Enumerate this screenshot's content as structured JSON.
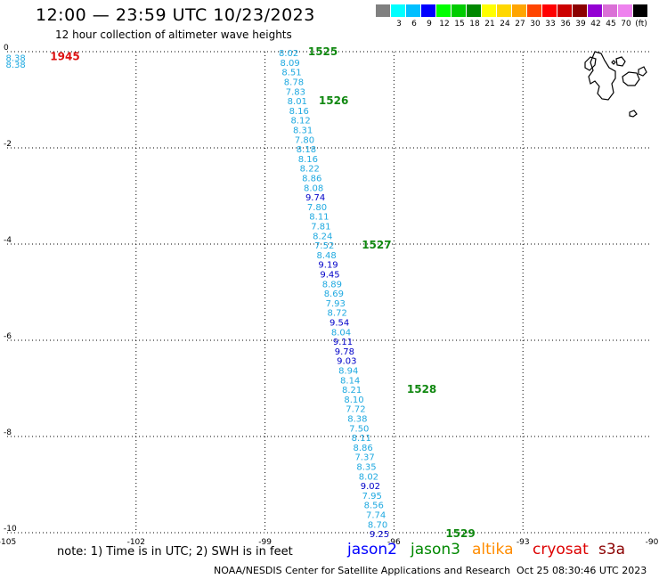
{
  "header": {
    "title": "12:00 — 23:59 UTC 10/23/2023",
    "subtitle": "12 hour collection of altimeter wave heights"
  },
  "colorbar": {
    "unit_label": "(ft)",
    "swatches": [
      {
        "color": "#808080",
        "label": ""
      },
      {
        "color": "#00ffff",
        "label": "3"
      },
      {
        "color": "#00bfff",
        "label": "6"
      },
      {
        "color": "#0000ff",
        "label": "9"
      },
      {
        "color": "#00ff00",
        "label": "12"
      },
      {
        "color": "#00cc00",
        "label": "15"
      },
      {
        "color": "#008800",
        "label": "18"
      },
      {
        "color": "#ffff00",
        "label": "21"
      },
      {
        "color": "#ffd700",
        "label": "24"
      },
      {
        "color": "#ffa500",
        "label": "27"
      },
      {
        "color": "#ff4500",
        "label": "30"
      },
      {
        "color": "#ff0000",
        "label": "33"
      },
      {
        "color": "#cc0000",
        "label": "36"
      },
      {
        "color": "#8b0000",
        "label": "39"
      },
      {
        "color": "#9400d3",
        "label": "42"
      },
      {
        "color": "#da70d6",
        "label": "45"
      },
      {
        "color": "#ee82ee",
        "label": "70"
      },
      {
        "color": "#000000",
        "label": ""
      }
    ]
  },
  "map": {
    "lon_range": [
      -105,
      -90
    ],
    "lat_range": [
      -10,
      0
    ],
    "x_ticks": [
      {
        "value": -105,
        "label": "-105"
      },
      {
        "value": -102,
        "label": "-102"
      },
      {
        "value": -99,
        "label": "-99"
      },
      {
        "value": -96,
        "label": "-96"
      },
      {
        "value": -93,
        "label": "-93"
      },
      {
        "value": -90,
        "label": "-90"
      }
    ],
    "y_ticks": [
      {
        "value": 0,
        "label": "0"
      },
      {
        "value": -2,
        "label": "-2"
      },
      {
        "value": -4,
        "label": "-4"
      },
      {
        "value": -6,
        "label": "-6"
      },
      {
        "value": -8,
        "label": "-8"
      },
      {
        "value": -10,
        "label": "-10"
      }
    ],
    "gridlines": true
  },
  "colors": {
    "swh_light": "#1fa9e0",
    "swh_dark": "#0000c8",
    "time_jason3": "#118811",
    "time_cryosat": "#dd1111",
    "land": "#000000"
  },
  "track_points": [
    {
      "lon": -98.45,
      "lat": -0.02,
      "swh": "8.02",
      "shade": "light"
    },
    {
      "lon": -98.42,
      "lat": -0.22,
      "swh": "8.09",
      "shade": "light"
    },
    {
      "lon": -98.38,
      "lat": -0.42,
      "swh": "8.51",
      "shade": "light"
    },
    {
      "lon": -98.33,
      "lat": -0.62,
      "swh": "8.78",
      "shade": "light"
    },
    {
      "lon": -98.29,
      "lat": -0.82,
      "swh": "7.83",
      "shade": "light"
    },
    {
      "lon": -98.25,
      "lat": -1.02,
      "swh": "8.01",
      "shade": "light"
    },
    {
      "lon": -98.21,
      "lat": -1.22,
      "swh": "8.16",
      "shade": "light"
    },
    {
      "lon": -98.17,
      "lat": -1.42,
      "swh": "8.12",
      "shade": "light"
    },
    {
      "lon": -98.12,
      "lat": -1.62,
      "swh": "8.31",
      "shade": "light"
    },
    {
      "lon": -98.08,
      "lat": -1.82,
      "swh": "7.80",
      "shade": "light"
    },
    {
      "lon": -98.04,
      "lat": -2.02,
      "swh": "8.18",
      "shade": "light"
    },
    {
      "lon": -98.0,
      "lat": -2.22,
      "swh": "8.16",
      "shade": "light"
    },
    {
      "lon": -97.96,
      "lat": -2.42,
      "swh": "8.22",
      "shade": "light"
    },
    {
      "lon": -97.91,
      "lat": -2.62,
      "swh": "8.86",
      "shade": "light"
    },
    {
      "lon": -97.87,
      "lat": -2.82,
      "swh": "8.08",
      "shade": "light"
    },
    {
      "lon": -97.83,
      "lat": -3.02,
      "swh": "9.74",
      "shade": "dark"
    },
    {
      "lon": -97.79,
      "lat": -3.22,
      "swh": "7.80",
      "shade": "light"
    },
    {
      "lon": -97.74,
      "lat": -3.42,
      "swh": "8.11",
      "shade": "light"
    },
    {
      "lon": -97.7,
      "lat": -3.62,
      "swh": "7.81",
      "shade": "light"
    },
    {
      "lon": -97.66,
      "lat": -3.82,
      "swh": "8.24",
      "shade": "light"
    },
    {
      "lon": -97.62,
      "lat": -4.02,
      "swh": "7.52",
      "shade": "light"
    },
    {
      "lon": -97.57,
      "lat": -4.22,
      "swh": "8.48",
      "shade": "light"
    },
    {
      "lon": -97.53,
      "lat": -4.42,
      "swh": "9.19",
      "shade": "dark"
    },
    {
      "lon": -97.49,
      "lat": -4.62,
      "swh": "9.45",
      "shade": "dark"
    },
    {
      "lon": -97.44,
      "lat": -4.82,
      "swh": "8.89",
      "shade": "light"
    },
    {
      "lon": -97.4,
      "lat": -5.02,
      "swh": "8.69",
      "shade": "light"
    },
    {
      "lon": -97.36,
      "lat": -5.22,
      "swh": "7.93",
      "shade": "light"
    },
    {
      "lon": -97.32,
      "lat": -5.42,
      "swh": "8.72",
      "shade": "light"
    },
    {
      "lon": -97.27,
      "lat": -5.62,
      "swh": "9.54",
      "shade": "dark"
    },
    {
      "lon": -97.23,
      "lat": -5.82,
      "swh": "8.04",
      "shade": "light"
    },
    {
      "lon": -97.19,
      "lat": -6.02,
      "swh": "9.11",
      "shade": "dark"
    },
    {
      "lon": -97.15,
      "lat": -6.22,
      "swh": "9.78",
      "shade": "dark"
    },
    {
      "lon": -97.1,
      "lat": -6.42,
      "swh": "9.03",
      "shade": "dark"
    },
    {
      "lon": -97.06,
      "lat": -6.62,
      "swh": "8.94",
      "shade": "light"
    },
    {
      "lon": -97.02,
      "lat": -6.82,
      "swh": "8.14",
      "shade": "light"
    },
    {
      "lon": -96.98,
      "lat": -7.02,
      "swh": "8.21",
      "shade": "light"
    },
    {
      "lon": -96.93,
      "lat": -7.22,
      "swh": "8.10",
      "shade": "light"
    },
    {
      "lon": -96.89,
      "lat": -7.42,
      "swh": "7.72",
      "shade": "light"
    },
    {
      "lon": -96.85,
      "lat": -7.62,
      "swh": "8.38",
      "shade": "light"
    },
    {
      "lon": -96.81,
      "lat": -7.82,
      "swh": "7.50",
      "shade": "light"
    },
    {
      "lon": -96.76,
      "lat": -8.02,
      "swh": "8.11",
      "shade": "light"
    },
    {
      "lon": -96.72,
      "lat": -8.22,
      "swh": "8.86",
      "shade": "light"
    },
    {
      "lon": -96.68,
      "lat": -8.42,
      "swh": "7.37",
      "shade": "light"
    },
    {
      "lon": -96.64,
      "lat": -8.62,
      "swh": "8.35",
      "shade": "light"
    },
    {
      "lon": -96.59,
      "lat": -8.82,
      "swh": "8.02",
      "shade": "light"
    },
    {
      "lon": -96.55,
      "lat": -9.02,
      "swh": "9.02",
      "shade": "dark"
    },
    {
      "lon": -96.51,
      "lat": -9.22,
      "swh": "7.95",
      "shade": "light"
    },
    {
      "lon": -96.47,
      "lat": -9.42,
      "swh": "8.56",
      "shade": "light"
    },
    {
      "lon": -96.42,
      "lat": -9.62,
      "swh": "7.74",
      "shade": "light"
    },
    {
      "lon": -96.38,
      "lat": -9.82,
      "swh": "8.70",
      "shade": "light"
    },
    {
      "lon": -96.34,
      "lat": -10.02,
      "swh": "9.25",
      "shade": "dark"
    },
    {
      "lon": -104.8,
      "lat": -0.12,
      "swh": "8.38",
      "shade": "light"
    },
    {
      "lon": -104.8,
      "lat": -0.26,
      "swh": "8.38",
      "shade": "light"
    }
  ],
  "time_labels": [
    {
      "lon": -98.0,
      "lat": 0.0,
      "text": "1525",
      "sat": "jason3"
    },
    {
      "lon": -97.75,
      "lat": -1.02,
      "text": "1526",
      "sat": "jason3"
    },
    {
      "lon": -96.75,
      "lat": -4.02,
      "text": "1527",
      "sat": "jason3"
    },
    {
      "lon": -95.7,
      "lat": -7.02,
      "text": "1528",
      "sat": "jason3"
    },
    {
      "lon": -94.8,
      "lat": -10.02,
      "text": "1529",
      "sat": "jason3"
    },
    {
      "lon": -104.0,
      "lat": -0.1,
      "text": "1945",
      "sat": "cryosat"
    }
  ],
  "legend": {
    "note": "note:  1) Time is in UTC;  2) SWH is in feet",
    "satellites": [
      {
        "name": "jason2",
        "color": "#0000ff"
      },
      {
        "name": "jason3",
        "color": "#008800"
      },
      {
        "name": "altika",
        "color": "#ff8c00"
      },
      {
        "name": "cryosat",
        "color": "#dd0000"
      },
      {
        "name": "s3a",
        "color": "#8b0000"
      }
    ]
  },
  "footer": {
    "credit": "NOAA/NESDIS Center for Satellite Applications and Research",
    "generated": "Oct 25 08:30:46 UTC 2023"
  }
}
